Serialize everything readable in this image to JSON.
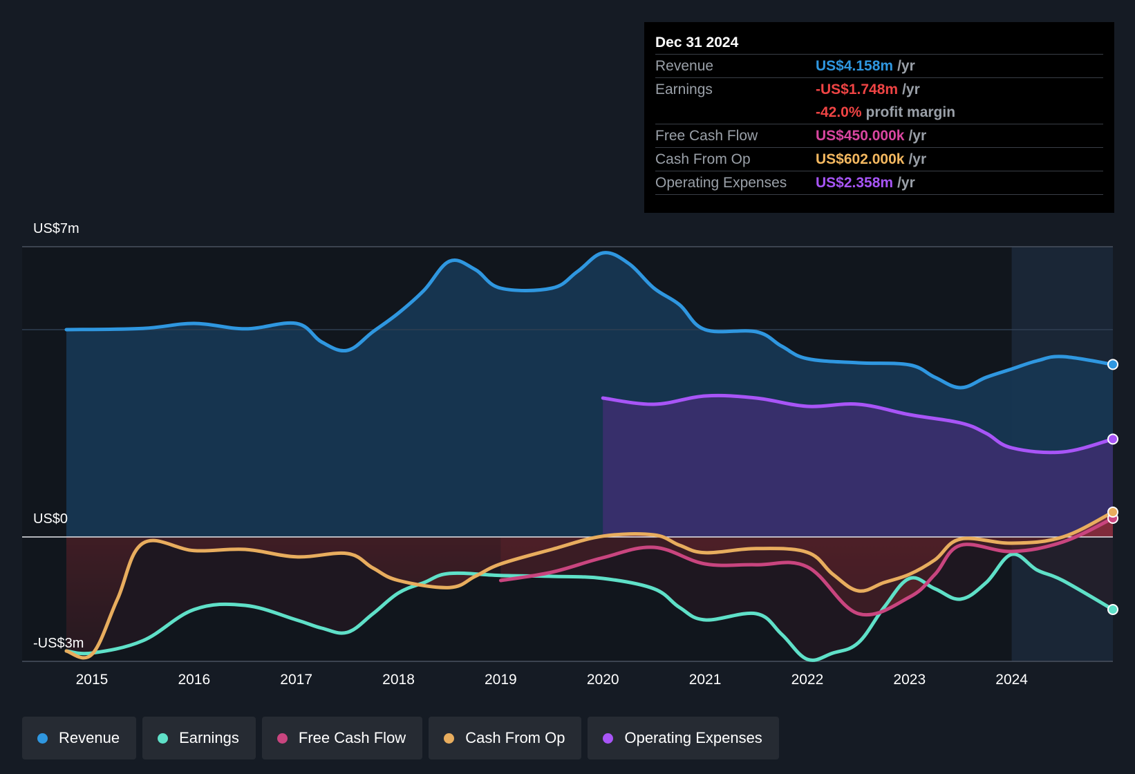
{
  "tooltip": {
    "date": "Dec 31 2024",
    "rows": [
      {
        "label": "Revenue",
        "value": "US$4.158m",
        "unit": "/yr",
        "color": "#2f97e0"
      },
      {
        "label": "Earnings",
        "value": "-US$1.748m",
        "unit": "/yr",
        "color": "#ef4444"
      },
      {
        "label": "",
        "value": "-42.0%",
        "unit": "profit margin",
        "color": "#ef4444"
      },
      {
        "label": "Free Cash Flow",
        "value": "US$450.000k",
        "unit": "/yr",
        "color": "#d946a0"
      },
      {
        "label": "Cash From Op",
        "value": "US$602.000k",
        "unit": "/yr",
        "color": "#f4b860"
      },
      {
        "label": "Operating Expenses",
        "value": "US$2.358m",
        "unit": "/yr",
        "color": "#a855f7"
      }
    ]
  },
  "legend": [
    {
      "label": "Revenue",
      "color": "#2f97e0"
    },
    {
      "label": "Earnings",
      "color": "#5fe0c8"
    },
    {
      "label": "Free Cash Flow",
      "color": "#c9457f"
    },
    {
      "label": "Cash From Op",
      "color": "#e8ad5e"
    },
    {
      "label": "Operating Expenses",
      "color": "#a855f7"
    }
  ],
  "chart_data": {
    "type": "line",
    "title": "",
    "xlabel": "",
    "ylabel": "",
    "y_tick_labels": {
      "top": "US$7m",
      "zero": "US$0",
      "bottom": "-US$3m"
    },
    "ylim": [
      -3,
      7
    ],
    "xlim": [
      2014.75,
      2024.99
    ],
    "x_ticks": [
      2015,
      2016,
      2017,
      2018,
      2019,
      2020,
      2021,
      2022,
      2023,
      2024
    ],
    "series": [
      {
        "name": "Revenue",
        "color": "#2f97e0",
        "points": [
          [
            2014.75,
            5.0
          ],
          [
            2015.5,
            5.03
          ],
          [
            2016.0,
            5.15
          ],
          [
            2016.5,
            5.02
          ],
          [
            2017.0,
            5.15
          ],
          [
            2017.25,
            4.7
          ],
          [
            2017.5,
            4.5
          ],
          [
            2017.75,
            4.95
          ],
          [
            2018.0,
            5.4
          ],
          [
            2018.25,
            5.95
          ],
          [
            2018.5,
            6.65
          ],
          [
            2018.75,
            6.45
          ],
          [
            2019.0,
            6.0
          ],
          [
            2019.5,
            6.0
          ],
          [
            2019.75,
            6.4
          ],
          [
            2020.0,
            6.85
          ],
          [
            2020.25,
            6.6
          ],
          [
            2020.5,
            6.0
          ],
          [
            2020.75,
            5.6
          ],
          [
            2021.0,
            5.0
          ],
          [
            2021.5,
            4.95
          ],
          [
            2021.75,
            4.6
          ],
          [
            2022.0,
            4.3
          ],
          [
            2022.5,
            4.2
          ],
          [
            2023.0,
            4.15
          ],
          [
            2023.25,
            3.85
          ],
          [
            2023.5,
            3.6
          ],
          [
            2023.75,
            3.85
          ],
          [
            2024.0,
            4.05
          ],
          [
            2024.25,
            4.25
          ],
          [
            2024.5,
            4.35
          ],
          [
            2024.99,
            4.16
          ]
        ]
      },
      {
        "name": "Operating Expenses",
        "color": "#a855f7",
        "points": [
          [
            2020.0,
            3.35
          ],
          [
            2020.5,
            3.2
          ],
          [
            2021.0,
            3.4
          ],
          [
            2021.5,
            3.35
          ],
          [
            2022.0,
            3.15
          ],
          [
            2022.5,
            3.2
          ],
          [
            2023.0,
            2.95
          ],
          [
            2023.5,
            2.75
          ],
          [
            2023.75,
            2.5
          ],
          [
            2024.0,
            2.15
          ],
          [
            2024.5,
            2.05
          ],
          [
            2024.99,
            2.36
          ]
        ]
      },
      {
        "name": "Earnings",
        "color": "#5fe0c8",
        "points": [
          [
            2014.75,
            -2.75
          ],
          [
            2015.0,
            -2.8
          ],
          [
            2015.5,
            -2.5
          ],
          [
            2016.0,
            -1.75
          ],
          [
            2016.5,
            -1.65
          ],
          [
            2017.0,
            -2.0
          ],
          [
            2017.25,
            -2.2
          ],
          [
            2017.5,
            -2.3
          ],
          [
            2017.75,
            -1.85
          ],
          [
            2018.0,
            -1.35
          ],
          [
            2018.25,
            -1.1
          ],
          [
            2018.5,
            -0.88
          ],
          [
            2019.0,
            -0.93
          ],
          [
            2019.5,
            -0.95
          ],
          [
            2020.0,
            -1.0
          ],
          [
            2020.5,
            -1.25
          ],
          [
            2020.75,
            -1.7
          ],
          [
            2021.0,
            -2.0
          ],
          [
            2021.5,
            -1.85
          ],
          [
            2021.75,
            -2.35
          ],
          [
            2022.0,
            -2.95
          ],
          [
            2022.25,
            -2.8
          ],
          [
            2022.5,
            -2.55
          ],
          [
            2022.75,
            -1.7
          ],
          [
            2023.0,
            -1.0
          ],
          [
            2023.25,
            -1.25
          ],
          [
            2023.5,
            -1.5
          ],
          [
            2023.75,
            -1.1
          ],
          [
            2024.0,
            -0.42
          ],
          [
            2024.25,
            -0.8
          ],
          [
            2024.5,
            -1.05
          ],
          [
            2024.99,
            -1.75
          ]
        ]
      },
      {
        "name": "Free Cash Flow",
        "color": "#c9457f",
        "points": [
          [
            2019.0,
            -1.05
          ],
          [
            2019.5,
            -0.85
          ],
          [
            2020.0,
            -0.5
          ],
          [
            2020.5,
            -0.25
          ],
          [
            2021.0,
            -0.65
          ],
          [
            2021.5,
            -0.67
          ],
          [
            2022.0,
            -0.72
          ],
          [
            2022.5,
            -1.85
          ],
          [
            2023.0,
            -1.45
          ],
          [
            2023.25,
            -0.9
          ],
          [
            2023.5,
            -0.2
          ],
          [
            2024.0,
            -0.35
          ],
          [
            2024.5,
            -0.12
          ],
          [
            2024.99,
            0.45
          ]
        ]
      },
      {
        "name": "Cash From Op",
        "color": "#e8ad5e",
        "points": [
          [
            2014.75,
            -2.75
          ],
          [
            2015.0,
            -2.83
          ],
          [
            2015.25,
            -1.5
          ],
          [
            2015.5,
            -0.15
          ],
          [
            2016.0,
            -0.33
          ],
          [
            2016.5,
            -0.3
          ],
          [
            2017.0,
            -0.48
          ],
          [
            2017.5,
            -0.4
          ],
          [
            2017.75,
            -0.75
          ],
          [
            2018.0,
            -1.05
          ],
          [
            2018.5,
            -1.22
          ],
          [
            2018.75,
            -0.95
          ],
          [
            2019.0,
            -0.65
          ],
          [
            2019.5,
            -0.3
          ],
          [
            2020.0,
            0.02
          ],
          [
            2020.5,
            0.05
          ],
          [
            2020.75,
            -0.2
          ],
          [
            2021.0,
            -0.38
          ],
          [
            2021.5,
            -0.28
          ],
          [
            2022.0,
            -0.37
          ],
          [
            2022.25,
            -0.9
          ],
          [
            2022.5,
            -1.3
          ],
          [
            2022.75,
            -1.1
          ],
          [
            2023.0,
            -0.9
          ],
          [
            2023.25,
            -0.55
          ],
          [
            2023.5,
            -0.05
          ],
          [
            2024.0,
            -0.15
          ],
          [
            2024.5,
            0.0
          ],
          [
            2024.99,
            0.6
          ]
        ]
      }
    ]
  }
}
